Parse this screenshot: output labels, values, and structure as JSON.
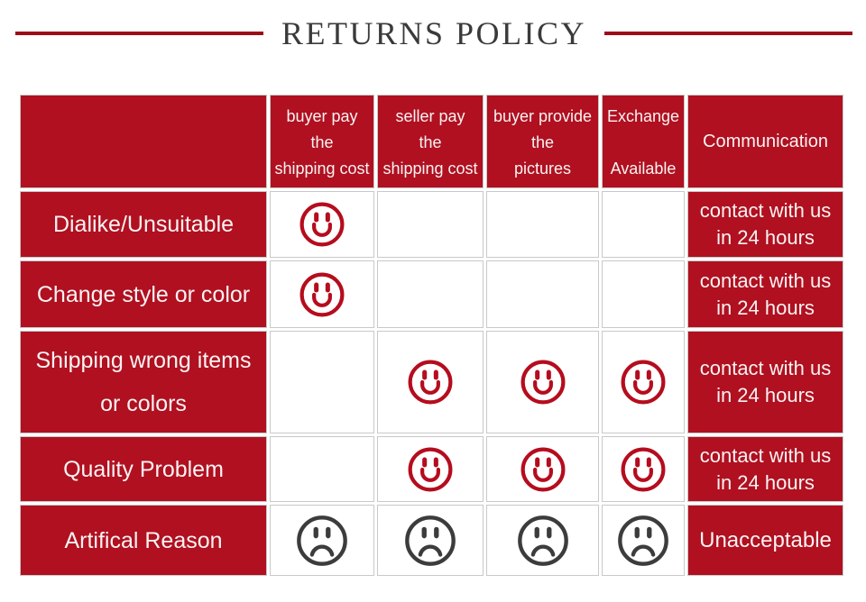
{
  "title": "RETURNS POLICY",
  "colors": {
    "cell_red": "#b01020",
    "rule_red": "#9d0c17",
    "happy_face": "#b50d1e",
    "sad_face": "#3c3c3c",
    "cell_border": "#c9c9c9",
    "title_text": "#3a3a3a"
  },
  "table": {
    "headers": {
      "col1": [
        "buyer pay",
        "the",
        "shipping cost"
      ],
      "col2": [
        "seller pay",
        "the",
        "shipping cost"
      ],
      "col3": [
        "buyer provide",
        "the",
        "pictures"
      ],
      "col4": [
        "Exchange",
        "",
        "Available"
      ],
      "col5": "Communication"
    },
    "rows": [
      {
        "label": "Dialike/Unsuitable",
        "marks": [
          "happy",
          "",
          "",
          ""
        ],
        "communication": "contact with us in 24 hours"
      },
      {
        "label": "Change style or color",
        "marks": [
          "happy",
          "",
          "",
          ""
        ],
        "communication": "contact with us in 24 hours"
      },
      {
        "label": "Shipping wrong items or colors",
        "marks": [
          "",
          "happy",
          "happy",
          "happy"
        ],
        "communication": "contact with us in 24 hours"
      },
      {
        "label": "Quality Problem",
        "marks": [
          "",
          "happy",
          "happy",
          "happy"
        ],
        "communication": "contact with us in 24 hours"
      },
      {
        "label": "Artifical Reason",
        "marks": [
          "sad",
          "sad",
          "sad",
          "sad"
        ],
        "communication": "Unacceptable"
      }
    ]
  }
}
